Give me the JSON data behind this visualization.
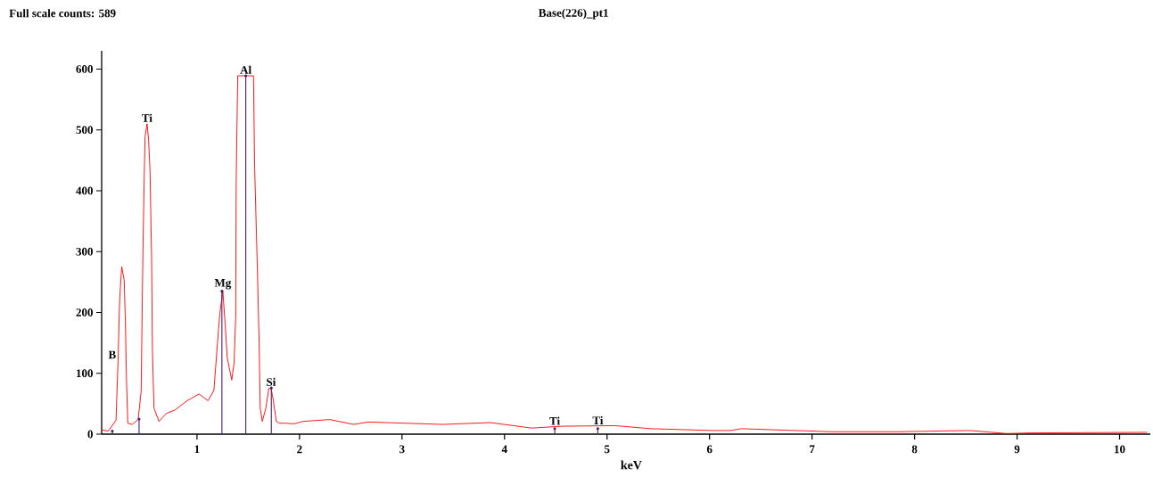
{
  "chart_data": {
    "type": "line",
    "title": "Base(226)_pt1",
    "xlabel": "keV",
    "annotations": [
      "Full scale counts: 589",
      {
        "text": "B",
        "x": 0.23,
        "y": 121
      },
      {
        "text": "Ti",
        "x": 0.513,
        "y": 510
      },
      {
        "text": "Mg",
        "x": 1.252,
        "y": 235
      },
      {
        "text": "Al",
        "x": 1.476,
        "y": 589
      },
      {
        "text": "Si",
        "x": 1.722,
        "y": 76
      },
      {
        "text": "Ti",
        "x": 4.49,
        "y": 12
      },
      {
        "text": "Ti",
        "x": 4.91,
        "y": 13
      }
    ],
    "xlim": [
      0.07,
      10.3
    ],
    "ylim": [
      0,
      630
    ],
    "xticks": [
      1,
      2,
      3,
      4,
      5,
      6,
      7,
      8,
      9,
      10
    ],
    "yticks": [
      0,
      100,
      200,
      300,
      400,
      500,
      600
    ],
    "series": [
      {
        "color": "#ff0000",
        "x": [
          0.07,
          0.135,
          0.21,
          0.23,
          0.246,
          0.266,
          0.29,
          0.301,
          0.313,
          0.325,
          0.368,
          0.426,
          0.455,
          0.475,
          0.493,
          0.513,
          0.528,
          0.542,
          0.557,
          0.565,
          0.58,
          0.629,
          0.701,
          0.788,
          0.904,
          1.02,
          1.107,
          1.165,
          1.2,
          1.223,
          1.252,
          1.275,
          1.295,
          1.339,
          1.362,
          1.377,
          1.382,
          1.397,
          1.551,
          1.562,
          1.594,
          1.606,
          1.617,
          1.637,
          1.672,
          1.701,
          1.722,
          1.745,
          1.774,
          1.803,
          1.861,
          1.948,
          2.035,
          2.296,
          2.528,
          2.672,
          3.397,
          3.861,
          4.267,
          4.557,
          5.078,
          5.426,
          6.035,
          6.209,
          6.31,
          7.19,
          7.83,
          8.54,
          8.9,
          9.13,
          10.27
        ],
        "values": [
          7,
          5,
          23,
          121,
          224,
          275,
          253,
          187,
          84,
          18,
          16,
          24,
          70,
          329,
          488,
          510,
          483,
          432,
          290,
          141,
          43,
          21,
          34,
          40,
          55,
          66,
          55,
          72,
          150,
          199,
          235,
          180,
          126,
          89,
          117,
          190,
          410,
          589,
          589,
          442,
          239,
          150,
          43,
          21,
          43,
          75,
          76,
          55,
          21,
          18,
          18,
          17,
          21,
          24,
          16,
          20,
          16,
          19,
          10,
          13,
          14,
          9,
          6,
          6,
          9,
          4,
          4,
          6,
          1,
          2,
          3
        ]
      },
      {
        "type": "lollipop",
        "color": "#4b1f6f",
        "x": [
          0.174,
          0.435,
          1.243,
          1.476,
          1.725,
          4.49,
          4.91
        ],
        "values": [
          5,
          25,
          235,
          589,
          76,
          9,
          9
        ]
      }
    ]
  }
}
